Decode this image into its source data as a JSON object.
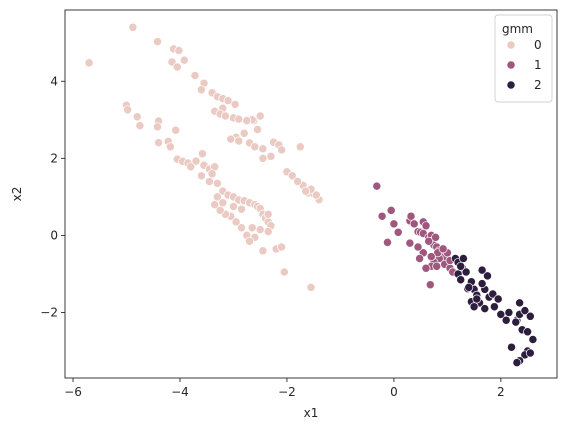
{
  "chart_data": {
    "type": "scatter",
    "xlabel": "x1",
    "ylabel": "x2",
    "xlim": [
      -6.15,
      3.05
    ],
    "ylim": [
      -3.7,
      5.85
    ],
    "xticks": [
      -6,
      -4,
      -2,
      0,
      2
    ],
    "yticks": [
      -2,
      0,
      2,
      4
    ],
    "xtick_labels": [
      "−6",
      "−4",
      "−2",
      "0",
      "2"
    ],
    "ytick_labels": [
      "−2",
      "0",
      "2",
      "4"
    ],
    "grid": false,
    "legend": {
      "title": "gmm",
      "placement": "top-right",
      "entries": [
        "0",
        "1",
        "2"
      ]
    },
    "series": [
      {
        "name": "0",
        "color": "#ebcac3",
        "points": [
          [
            -5.7,
            4.48
          ],
          [
            -4.88,
            5.4
          ],
          [
            -4.42,
            5.03
          ],
          [
            -4.12,
            4.84
          ],
          [
            -4.02,
            4.8
          ],
          [
            -3.92,
            4.55
          ],
          [
            -4.15,
            4.5
          ],
          [
            -4.05,
            4.37
          ],
          [
            -3.72,
            4.15
          ],
          [
            -3.55,
            3.95
          ],
          [
            -3.6,
            3.78
          ],
          [
            -3.4,
            3.7
          ],
          [
            -3.3,
            3.6
          ],
          [
            -3.2,
            3.55
          ],
          [
            -3.1,
            3.5
          ],
          [
            -2.97,
            3.4
          ],
          [
            -3.2,
            3.3
          ],
          [
            -3.35,
            3.22
          ],
          [
            -3.25,
            3.15
          ],
          [
            -3.15,
            3.1
          ],
          [
            -3.0,
            3.05
          ],
          [
            -2.9,
            3.02
          ],
          [
            -2.75,
            3.0
          ],
          [
            -2.62,
            2.98
          ],
          [
            -2.55,
            2.75
          ],
          [
            -2.8,
            2.65
          ],
          [
            -2.95,
            2.55
          ],
          [
            -3.05,
            2.5
          ],
          [
            -2.9,
            2.45
          ],
          [
            -2.7,
            2.4
          ],
          [
            -2.6,
            2.3
          ],
          [
            -2.45,
            2.25
          ],
          [
            -2.25,
            2.42
          ],
          [
            -2.15,
            2.35
          ],
          [
            -2.1,
            2.22
          ],
          [
            -2.3,
            2.05
          ],
          [
            -2.45,
            2.0
          ],
          [
            -2.0,
            1.65
          ],
          [
            -1.9,
            1.55
          ],
          [
            -1.75,
            2.3
          ],
          [
            -1.7,
            1.3
          ],
          [
            -1.6,
            1.1
          ],
          [
            -1.5,
            1.08
          ],
          [
            -1.4,
            0.93
          ],
          [
            -1.45,
            1.05
          ],
          [
            -1.55,
            1.2
          ],
          [
            -1.8,
            1.4
          ],
          [
            -1.65,
            1.15
          ],
          [
            -5.0,
            3.38
          ],
          [
            -4.98,
            3.26
          ],
          [
            -4.8,
            3.08
          ],
          [
            -4.75,
            2.85
          ],
          [
            -4.4,
            2.97
          ],
          [
            -4.42,
            2.82
          ],
          [
            -4.08,
            2.73
          ],
          [
            -4.22,
            2.44
          ],
          [
            -4.4,
            2.41
          ],
          [
            -4.18,
            2.3
          ],
          [
            -4.05,
            1.98
          ],
          [
            -3.95,
            1.92
          ],
          [
            -3.85,
            1.88
          ],
          [
            -3.7,
            1.93
          ],
          [
            -3.58,
            2.12
          ],
          [
            -3.55,
            1.82
          ],
          [
            -3.45,
            1.72
          ],
          [
            -3.35,
            1.78
          ],
          [
            -3.4,
            1.6
          ],
          [
            -3.45,
            1.4
          ],
          [
            -3.3,
            1.35
          ],
          [
            -3.2,
            1.15
          ],
          [
            -3.1,
            1.05
          ],
          [
            -3.0,
            1.0
          ],
          [
            -2.9,
            0.92
          ],
          [
            -2.8,
            0.9
          ],
          [
            -2.7,
            0.85
          ],
          [
            -2.6,
            0.8
          ],
          [
            -2.55,
            0.75
          ],
          [
            -2.5,
            0.7
          ],
          [
            -2.45,
            0.55
          ],
          [
            -2.4,
            0.45
          ],
          [
            -2.35,
            0.35
          ],
          [
            -2.3,
            0.25
          ],
          [
            -2.35,
            0.1
          ],
          [
            -2.5,
            0.15
          ],
          [
            -2.6,
            -0.05
          ],
          [
            -2.75,
            0.0
          ],
          [
            -2.85,
            0.2
          ],
          [
            -2.95,
            0.35
          ],
          [
            -3.05,
            0.5
          ],
          [
            -3.15,
            0.55
          ],
          [
            -3.25,
            0.65
          ],
          [
            -3.35,
            0.8
          ],
          [
            -3.3,
            1.0
          ],
          [
            -3.2,
            0.85
          ],
          [
            -3.0,
            0.75
          ],
          [
            -2.85,
            0.68
          ],
          [
            -3.6,
            1.55
          ],
          [
            -3.8,
            1.78
          ],
          [
            -2.2,
            -0.35
          ],
          [
            -2.1,
            -0.3
          ],
          [
            -2.05,
            -0.95
          ],
          [
            -1.55,
            -1.35
          ],
          [
            -2.45,
            -0.4
          ],
          [
            -2.7,
            -0.15
          ],
          [
            -2.65,
            0.2
          ],
          [
            -2.35,
            0.55
          ],
          [
            -2.65,
            3.0
          ],
          [
            -2.75,
            2.98
          ],
          [
            -2.5,
            3.1
          ]
        ]
      },
      {
        "name": "1",
        "color": "#a0577e",
        "points": [
          [
            -0.32,
            1.28
          ],
          [
            -0.22,
            0.5
          ],
          [
            -0.05,
            0.65
          ],
          [
            -0.12,
            -0.18
          ],
          [
            0.0,
            0.3
          ],
          [
            0.08,
            0.08
          ],
          [
            0.3,
            0.38
          ],
          [
            0.32,
            0.5
          ],
          [
            0.38,
            0.3
          ],
          [
            0.45,
            0.1
          ],
          [
            0.5,
            0.08
          ],
          [
            0.55,
            0.35
          ],
          [
            0.6,
            0.25
          ],
          [
            0.55,
            0.05
          ],
          [
            0.65,
            -0.05
          ],
          [
            0.7,
            0.0
          ],
          [
            0.72,
            -0.15
          ],
          [
            0.75,
            -0.25
          ],
          [
            0.8,
            -0.3
          ],
          [
            0.85,
            -0.4
          ],
          [
            0.9,
            -0.5
          ],
          [
            0.95,
            -0.55
          ],
          [
            1.0,
            -0.45
          ],
          [
            0.85,
            -0.6
          ],
          [
            0.75,
            -0.7
          ],
          [
            0.7,
            -0.8
          ],
          [
            0.6,
            -0.85
          ],
          [
            0.8,
            -0.8
          ],
          [
            0.95,
            -0.75
          ],
          [
            1.05,
            -0.85
          ],
          [
            0.68,
            -1.28
          ],
          [
            0.55,
            -0.45
          ],
          [
            0.45,
            -0.3
          ],
          [
            0.3,
            -0.2
          ],
          [
            0.65,
            -0.15
          ],
          [
            1.05,
            -0.65
          ],
          [
            0.82,
            -0.45
          ],
          [
            0.7,
            -0.55
          ],
          [
            0.48,
            -0.6
          ],
          [
            0.92,
            -0.35
          ],
          [
            1.1,
            -0.95
          ],
          [
            0.78,
            -0.05
          ]
        ]
      },
      {
        "name": "2",
        "color": "#2d1e3e",
        "points": [
          [
            1.15,
            -0.6
          ],
          [
            1.2,
            -0.7
          ],
          [
            1.28,
            -0.85
          ],
          [
            1.35,
            -0.95
          ],
          [
            1.2,
            -1.0
          ],
          [
            1.25,
            -1.15
          ],
          [
            1.45,
            -1.2
          ],
          [
            1.5,
            -1.4
          ],
          [
            1.38,
            -1.38
          ],
          [
            1.55,
            -1.55
          ],
          [
            1.6,
            -1.75
          ],
          [
            1.45,
            -1.72
          ],
          [
            1.7,
            -1.4
          ],
          [
            1.65,
            -1.25
          ],
          [
            1.78,
            -1.6
          ],
          [
            1.85,
            -1.52
          ],
          [
            1.95,
            -1.65
          ],
          [
            1.88,
            -1.85
          ],
          [
            1.7,
            -1.9
          ],
          [
            1.5,
            -1.85
          ],
          [
            2.0,
            -2.05
          ],
          [
            2.15,
            -2.0
          ],
          [
            2.3,
            -2.2
          ],
          [
            2.35,
            -2.05
          ],
          [
            2.45,
            -1.95
          ],
          [
            2.55,
            -2.1
          ],
          [
            2.4,
            -2.45
          ],
          [
            2.5,
            -2.5
          ],
          [
            2.6,
            -2.7
          ],
          [
            2.5,
            -3.0
          ],
          [
            2.45,
            -3.1
          ],
          [
            2.35,
            -3.25
          ],
          [
            2.3,
            -3.3
          ],
          [
            2.2,
            -2.9
          ],
          [
            2.1,
            -2.2
          ],
          [
            2.28,
            -2.25
          ],
          [
            1.65,
            -0.9
          ],
          [
            1.75,
            -1.05
          ],
          [
            1.3,
            -0.6
          ],
          [
            1.55,
            -1.65
          ],
          [
            2.35,
            -1.75
          ],
          [
            1.4,
            -1.35
          ],
          [
            1.25,
            -0.8
          ],
          [
            2.55,
            -3.05
          ]
        ]
      }
    ]
  }
}
